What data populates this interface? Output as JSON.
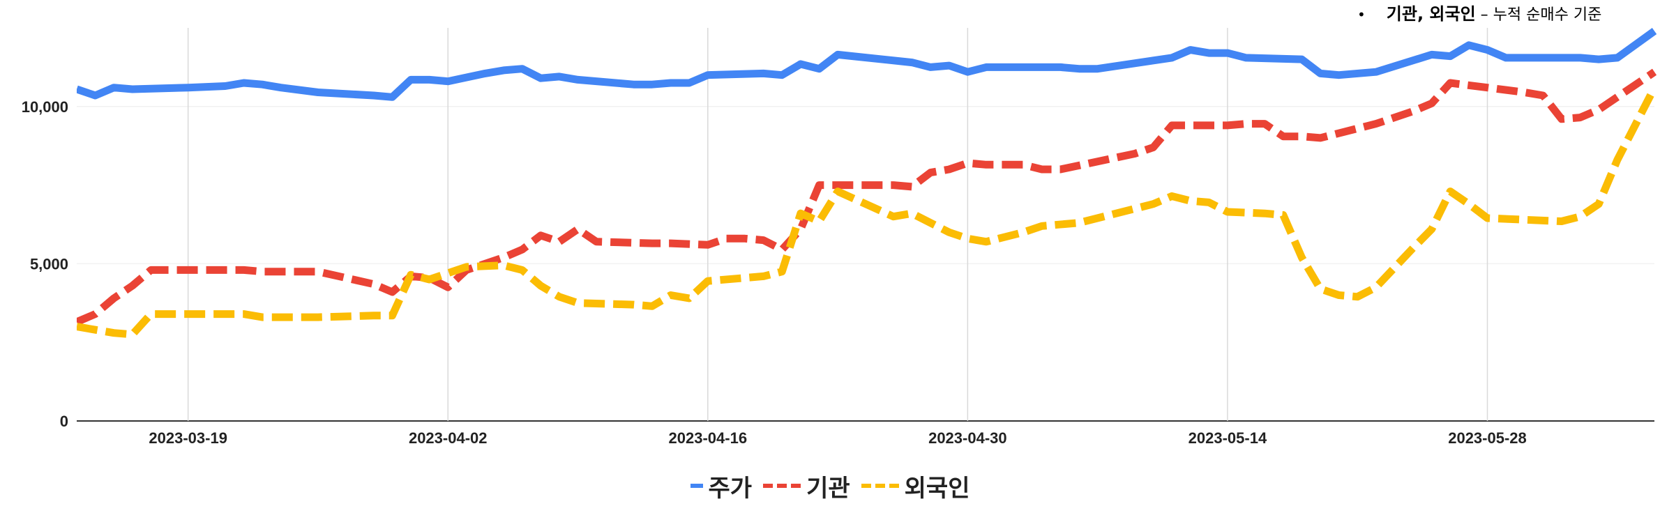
{
  "annotation": {
    "bullet": "•",
    "strong": "기관, 외국인",
    "rest": " – 누적 순매수 기준"
  },
  "chart_data": {
    "type": "line",
    "x_axis_type": "date",
    "x_ticks": [
      "2023-03-19",
      "2023-04-02",
      "2023-04-16",
      "2023-04-30",
      "2023-05-14",
      "2023-05-28"
    ],
    "xlim": [
      "2023-03-13",
      "2023-06-06"
    ],
    "y_ticks": [
      0,
      5000,
      10000
    ],
    "y_tick_labels": [
      "0",
      "5,000",
      "10,000"
    ],
    "ylim": [
      0,
      12500
    ],
    "grid": true,
    "legend_position": "bottom",
    "series": [
      {
        "name": "주가",
        "color": "#4285F4",
        "style": "solid",
        "points": [
          [
            "2023-03-13",
            10550
          ],
          [
            "2023-03-14",
            10350
          ],
          [
            "2023-03-15",
            10600
          ],
          [
            "2023-03-16",
            10550
          ],
          [
            "2023-03-19",
            10600
          ],
          [
            "2023-03-21",
            10650
          ],
          [
            "2023-03-22",
            10750
          ],
          [
            "2023-03-23",
            10700
          ],
          [
            "2023-03-24",
            10600
          ],
          [
            "2023-03-26",
            10450
          ],
          [
            "2023-03-29",
            10350
          ],
          [
            "2023-03-30",
            10300
          ],
          [
            "2023-03-31",
            10850
          ],
          [
            "2023-04-01",
            10850
          ],
          [
            "2023-04-02",
            10800
          ],
          [
            "2023-04-04",
            11050
          ],
          [
            "2023-04-05",
            11150
          ],
          [
            "2023-04-06",
            11200
          ],
          [
            "2023-04-07",
            10900
          ],
          [
            "2023-04-08",
            10950
          ],
          [
            "2023-04-09",
            10850
          ],
          [
            "2023-04-12",
            10700
          ],
          [
            "2023-04-13",
            10700
          ],
          [
            "2023-04-14",
            10750
          ],
          [
            "2023-04-15",
            10750
          ],
          [
            "2023-04-16",
            11000
          ],
          [
            "2023-04-19",
            11050
          ],
          [
            "2023-04-20",
            11000
          ],
          [
            "2023-04-21",
            11350
          ],
          [
            "2023-04-22",
            11200
          ],
          [
            "2023-04-23",
            11650
          ],
          [
            "2023-04-27",
            11400
          ],
          [
            "2023-04-28",
            11250
          ],
          [
            "2023-04-29",
            11300
          ],
          [
            "2023-04-30",
            11100
          ],
          [
            "2023-05-01",
            11250
          ],
          [
            "2023-05-05",
            11250
          ],
          [
            "2023-05-06",
            11200
          ],
          [
            "2023-05-07",
            11200
          ],
          [
            "2023-05-11",
            11550
          ],
          [
            "2023-05-12",
            11800
          ],
          [
            "2023-05-13",
            11700
          ],
          [
            "2023-05-14",
            11700
          ],
          [
            "2023-05-15",
            11550
          ],
          [
            "2023-05-18",
            11500
          ],
          [
            "2023-05-19",
            11050
          ],
          [
            "2023-05-20",
            11000
          ],
          [
            "2023-05-22",
            11100
          ],
          [
            "2023-05-25",
            11650
          ],
          [
            "2023-05-26",
            11600
          ],
          [
            "2023-05-27",
            11950
          ],
          [
            "2023-05-28",
            11800
          ],
          [
            "2023-05-29",
            11550
          ],
          [
            "2023-06-02",
            11550
          ],
          [
            "2023-06-03",
            11500
          ],
          [
            "2023-06-04",
            11550
          ],
          [
            "2023-06-06",
            12400
          ]
        ]
      },
      {
        "name": "기관",
        "color": "#EA4335",
        "style": "dashed",
        "points": [
          [
            "2023-03-13",
            3150
          ],
          [
            "2023-03-14",
            3400
          ],
          [
            "2023-03-15",
            3900
          ],
          [
            "2023-03-16",
            4300
          ],
          [
            "2023-03-17",
            4800
          ],
          [
            "2023-03-19",
            4800
          ],
          [
            "2023-03-22",
            4800
          ],
          [
            "2023-03-23",
            4750
          ],
          [
            "2023-03-26",
            4750
          ],
          [
            "2023-03-29",
            4350
          ],
          [
            "2023-03-30",
            4100
          ],
          [
            "2023-03-31",
            4600
          ],
          [
            "2023-04-01",
            4550
          ],
          [
            "2023-04-02",
            4250
          ],
          [
            "2023-04-03",
            4800
          ],
          [
            "2023-04-05",
            5200
          ],
          [
            "2023-04-06",
            5450
          ],
          [
            "2023-04-07",
            5900
          ],
          [
            "2023-04-08",
            5700
          ],
          [
            "2023-04-09",
            6100
          ],
          [
            "2023-04-10",
            5700
          ],
          [
            "2023-04-13",
            5650
          ],
          [
            "2023-04-14",
            5650
          ],
          [
            "2023-04-16",
            5600
          ],
          [
            "2023-04-17",
            5800
          ],
          [
            "2023-04-18",
            5800
          ],
          [
            "2023-04-19",
            5750
          ],
          [
            "2023-04-20",
            5450
          ],
          [
            "2023-04-21",
            6100
          ],
          [
            "2023-04-22",
            7500
          ],
          [
            "2023-04-26",
            7500
          ],
          [
            "2023-04-27",
            7450
          ],
          [
            "2023-04-28",
            7900
          ],
          [
            "2023-04-29",
            8000
          ],
          [
            "2023-04-30",
            8200
          ],
          [
            "2023-05-01",
            8150
          ],
          [
            "2023-05-03",
            8150
          ],
          [
            "2023-05-04",
            8000
          ],
          [
            "2023-05-05",
            8000
          ],
          [
            "2023-05-09",
            8500
          ],
          [
            "2023-05-10",
            8700
          ],
          [
            "2023-05-11",
            9400
          ],
          [
            "2023-05-13",
            9400
          ],
          [
            "2023-05-14",
            9400
          ],
          [
            "2023-05-15",
            9450
          ],
          [
            "2023-05-16",
            9450
          ],
          [
            "2023-05-17",
            9050
          ],
          [
            "2023-05-18",
            9050
          ],
          [
            "2023-05-19",
            9000
          ],
          [
            "2023-05-22",
            9450
          ],
          [
            "2023-05-24",
            9850
          ],
          [
            "2023-05-25",
            10100
          ],
          [
            "2023-05-26",
            10750
          ],
          [
            "2023-05-28",
            10600
          ],
          [
            "2023-05-30",
            10450
          ],
          [
            "2023-05-31",
            10350
          ],
          [
            "2023-06-01",
            9600
          ],
          [
            "2023-06-02",
            9650
          ],
          [
            "2023-06-03",
            9900
          ],
          [
            "2023-06-06",
            11100
          ]
        ]
      },
      {
        "name": "외국인",
        "color": "#FBBC04",
        "style": "dashed",
        "points": [
          [
            "2023-03-13",
            3000
          ],
          [
            "2023-03-14",
            2900
          ],
          [
            "2023-03-15",
            2800
          ],
          [
            "2023-03-16",
            2750
          ],
          [
            "2023-03-17",
            3400
          ],
          [
            "2023-03-19",
            3400
          ],
          [
            "2023-03-22",
            3400
          ],
          [
            "2023-03-23",
            3300
          ],
          [
            "2023-03-24",
            3300
          ],
          [
            "2023-03-26",
            3300
          ],
          [
            "2023-03-29",
            3350
          ],
          [
            "2023-03-30",
            3350
          ],
          [
            "2023-03-31",
            4650
          ],
          [
            "2023-04-01",
            4500
          ],
          [
            "2023-04-02",
            4700
          ],
          [
            "2023-04-03",
            4900
          ],
          [
            "2023-04-05",
            4950
          ],
          [
            "2023-04-06",
            4800
          ],
          [
            "2023-04-07",
            4300
          ],
          [
            "2023-04-08",
            3950
          ],
          [
            "2023-04-09",
            3750
          ],
          [
            "2023-04-12",
            3700
          ],
          [
            "2023-04-13",
            3650
          ],
          [
            "2023-04-14",
            4000
          ],
          [
            "2023-04-15",
            3900
          ],
          [
            "2023-04-16",
            4450
          ],
          [
            "2023-04-18",
            4550
          ],
          [
            "2023-04-19",
            4600
          ],
          [
            "2023-04-20",
            4750
          ],
          [
            "2023-04-21",
            6600
          ],
          [
            "2023-04-22",
            6350
          ],
          [
            "2023-04-23",
            7300
          ],
          [
            "2023-04-26",
            6500
          ],
          [
            "2023-04-27",
            6600
          ],
          [
            "2023-04-29",
            6000
          ],
          [
            "2023-04-30",
            5800
          ],
          [
            "2023-05-01",
            5700
          ],
          [
            "2023-05-03",
            6000
          ],
          [
            "2023-05-04",
            6200
          ],
          [
            "2023-05-06",
            6300
          ],
          [
            "2023-05-08",
            6600
          ],
          [
            "2023-05-10",
            6900
          ],
          [
            "2023-05-11",
            7150
          ],
          [
            "2023-05-12",
            7000
          ],
          [
            "2023-05-13",
            6950
          ],
          [
            "2023-05-14",
            6650
          ],
          [
            "2023-05-16",
            6600
          ],
          [
            "2023-05-17",
            6550
          ],
          [
            "2023-05-18",
            5200
          ],
          [
            "2023-05-19",
            4200
          ],
          [
            "2023-05-20",
            4000
          ],
          [
            "2023-05-21",
            3950
          ],
          [
            "2023-05-22",
            4250
          ],
          [
            "2023-05-24",
            5500
          ],
          [
            "2023-05-25",
            6100
          ],
          [
            "2023-05-26",
            7300
          ],
          [
            "2023-05-27",
            6900
          ],
          [
            "2023-05-28",
            6450
          ],
          [
            "2023-06-01",
            6350
          ],
          [
            "2023-06-02",
            6500
          ],
          [
            "2023-06-03",
            6900
          ],
          [
            "2023-06-04",
            8300
          ],
          [
            "2023-06-06",
            10600
          ]
        ]
      }
    ]
  }
}
